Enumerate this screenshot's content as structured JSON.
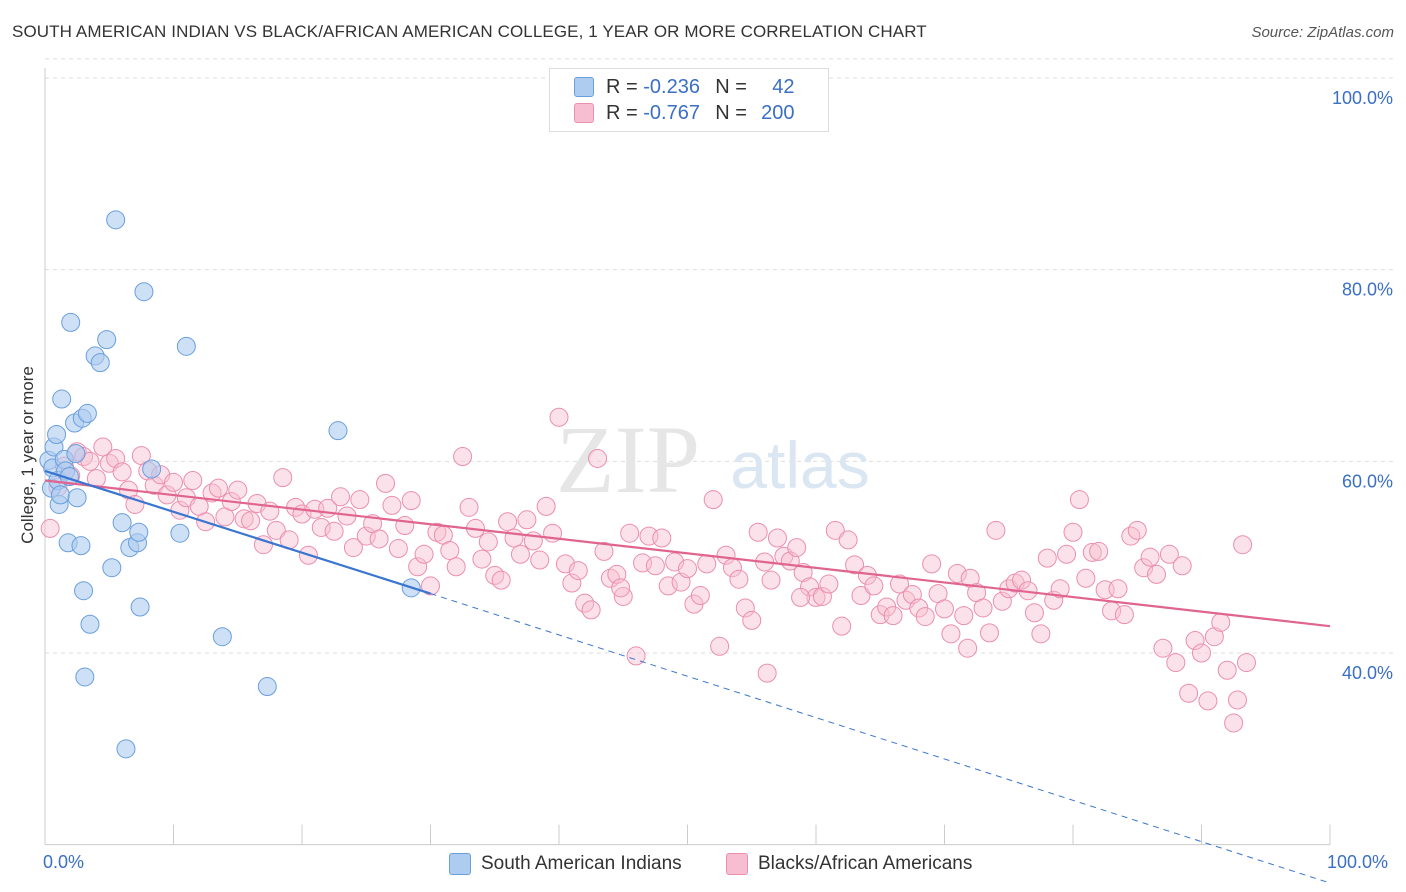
{
  "title": "SOUTH AMERICAN INDIAN VS BLACK/AFRICAN AMERICAN COLLEGE, 1 YEAR OR MORE CORRELATION CHART",
  "source": "Source: ZipAtlas.com",
  "watermark": {
    "zip": "ZIP",
    "atlas": "atlas"
  },
  "legend": {
    "r_label": "R =",
    "n_label": "N =",
    "rows": [
      {
        "r": "-0.236",
        "n": "42"
      },
      {
        "r": "-0.767",
        "n": "200"
      }
    ]
  },
  "x_axis": {
    "min_label": "0.0%",
    "max_label": "100.0%"
  },
  "bottom_legend": [
    "South American Indians",
    "Blacks/African Americans"
  ],
  "colors": {
    "blue_fill": "#aecbf0",
    "blue_stroke": "#6a9fdc",
    "blue_line": "#3a75d0",
    "pink_fill": "#f7bed1",
    "pink_stroke": "#ec8eae",
    "pink_line": "#e0648f",
    "axis_text": "#3a6fc4",
    "grid": "#dddddd"
  },
  "chart_data": {
    "type": "scatter",
    "title": "SOUTH AMERICAN INDIAN VS BLACK/AFRICAN AMERICAN COLLEGE, 1 YEAR OR MORE CORRELATION CHART",
    "xlabel": "",
    "ylabel": "College, 1 year or more",
    "xlim": [
      0,
      100
    ],
    "ylim": [
      20,
      102
    ],
    "y_ticks": [
      40,
      60,
      80,
      100
    ],
    "y_tick_labels": [
      "40.0%",
      "60.0%",
      "80.0%",
      "100.0%"
    ],
    "grid": "horizontal dashed",
    "legend_position": "top-center",
    "series": [
      {
        "name": "South American Indians",
        "r": -0.236,
        "n": 42,
        "trend": {
          "x0": 0,
          "y0": 59.0,
          "x1": 30,
          "y1": 46.2,
          "dashed_to_x": 100,
          "dashed_to_y": 16.0
        },
        "points": [
          [
            0.3,
            60.1
          ],
          [
            0.5,
            57.2
          ],
          [
            0.6,
            59.3
          ],
          [
            0.7,
            61.5
          ],
          [
            0.9,
            62.8
          ],
          [
            1.0,
            58.0
          ],
          [
            1.1,
            55.5
          ],
          [
            1.2,
            56.5
          ],
          [
            1.3,
            66.5
          ],
          [
            1.5,
            60.2
          ],
          [
            1.6,
            59.0
          ],
          [
            1.8,
            51.5
          ],
          [
            1.9,
            58.4
          ],
          [
            2.0,
            74.5
          ],
          [
            2.3,
            64.0
          ],
          [
            2.4,
            60.8
          ],
          [
            2.5,
            56.2
          ],
          [
            2.8,
            51.2
          ],
          [
            2.9,
            64.5
          ],
          [
            3.0,
            46.5
          ],
          [
            3.1,
            37.5
          ],
          [
            3.3,
            65.0
          ],
          [
            3.5,
            43.0
          ],
          [
            3.9,
            71.0
          ],
          [
            4.3,
            70.3
          ],
          [
            4.8,
            72.7
          ],
          [
            5.2,
            48.9
          ],
          [
            5.5,
            85.2
          ],
          [
            6.0,
            53.6
          ],
          [
            6.3,
            30.0
          ],
          [
            6.6,
            51.0
          ],
          [
            7.2,
            51.5
          ],
          [
            7.3,
            52.6
          ],
          [
            7.4,
            44.8
          ],
          [
            7.7,
            77.7
          ],
          [
            8.3,
            59.2
          ],
          [
            10.5,
            52.5
          ],
          [
            11.0,
            72.0
          ],
          [
            13.8,
            41.7
          ],
          [
            17.3,
            36.5
          ],
          [
            22.8,
            63.2
          ],
          [
            28.5,
            46.8
          ]
        ]
      },
      {
        "name": "Blacks/African Americans",
        "r": -0.767,
        "n": 200,
        "trend": {
          "x0": 0,
          "y0": 58.0,
          "x1": 100,
          "y1": 42.8
        },
        "points": [
          [
            0.4,
            53.0
          ],
          [
            1.0,
            57.3
          ],
          [
            1.5,
            59.5
          ],
          [
            2.0,
            58.5
          ],
          [
            2.5,
            61.0
          ],
          [
            3.0,
            60.5
          ],
          [
            3.5,
            60.0
          ],
          [
            4.0,
            58.2
          ],
          [
            4.5,
            61.5
          ],
          [
            5.0,
            59.8
          ],
          [
            5.5,
            60.3
          ],
          [
            6.0,
            58.9
          ],
          [
            6.5,
            57.0
          ],
          [
            7.0,
            55.5
          ],
          [
            7.5,
            60.6
          ],
          [
            8.0,
            59.0
          ],
          [
            8.5,
            57.5
          ],
          [
            9.0,
            58.6
          ],
          [
            9.5,
            56.5
          ],
          [
            10.0,
            57.8
          ],
          [
            10.5,
            54.9
          ],
          [
            11.0,
            56.2
          ],
          [
            11.5,
            58.0
          ],
          [
            12.0,
            55.3
          ],
          [
            12.5,
            53.7
          ],
          [
            13.0,
            56.7
          ],
          [
            13.5,
            57.2
          ],
          [
            14.0,
            54.2
          ],
          [
            14.5,
            55.8
          ],
          [
            15.0,
            57.0
          ],
          [
            15.5,
            54.0
          ],
          [
            16.0,
            53.8
          ],
          [
            16.5,
            55.6
          ],
          [
            17.0,
            51.3
          ],
          [
            17.5,
            54.8
          ],
          [
            18.0,
            52.8
          ],
          [
            18.5,
            58.3
          ],
          [
            19.0,
            51.8
          ],
          [
            19.5,
            55.2
          ],
          [
            20.0,
            54.5
          ],
          [
            20.5,
            50.2
          ],
          [
            21.0,
            55.0
          ],
          [
            21.5,
            53.1
          ],
          [
            22.0,
            55.1
          ],
          [
            22.5,
            52.7
          ],
          [
            23.0,
            56.3
          ],
          [
            23.5,
            54.3
          ],
          [
            24.0,
            51.0
          ],
          [
            24.5,
            56.0
          ],
          [
            25.0,
            52.2
          ],
          [
            25.5,
            53.5
          ],
          [
            26.0,
            51.9
          ],
          [
            26.5,
            57.7
          ],
          [
            27.0,
            55.4
          ],
          [
            27.5,
            50.9
          ],
          [
            28.0,
            53.3
          ],
          [
            28.5,
            55.9
          ],
          [
            29.0,
            49.0
          ],
          [
            29.5,
            50.3
          ],
          [
            30.0,
            47.0
          ],
          [
            30.5,
            52.6
          ],
          [
            31.0,
            52.3
          ],
          [
            31.5,
            50.7
          ],
          [
            32.0,
            49.0
          ],
          [
            32.5,
            60.5
          ],
          [
            33.0,
            55.2
          ],
          [
            33.5,
            53.0
          ],
          [
            34.0,
            49.8
          ],
          [
            34.5,
            51.6
          ],
          [
            35.0,
            48.1
          ],
          [
            35.5,
            47.6
          ],
          [
            36.0,
            53.7
          ],
          [
            36.5,
            52.0
          ],
          [
            37.0,
            50.3
          ],
          [
            37.5,
            53.9
          ],
          [
            38.0,
            51.7
          ],
          [
            38.5,
            49.7
          ],
          [
            39.0,
            55.3
          ],
          [
            39.5,
            52.5
          ],
          [
            40.0,
            64.6
          ],
          [
            40.5,
            49.3
          ],
          [
            41.0,
            47.3
          ],
          [
            41.5,
            48.6
          ],
          [
            42.0,
            45.2
          ],
          [
            42.5,
            44.5
          ],
          [
            43.0,
            60.3
          ],
          [
            43.5,
            50.6
          ],
          [
            44.0,
            47.8
          ],
          [
            44.5,
            48.2
          ],
          [
            45.0,
            45.9
          ],
          [
            45.5,
            52.5
          ],
          [
            46.0,
            39.7
          ],
          [
            46.5,
            49.4
          ],
          [
            47.0,
            52.2
          ],
          [
            47.5,
            49.1
          ],
          [
            48.0,
            52.0
          ],
          [
            48.5,
            47.0
          ],
          [
            49.0,
            49.5
          ],
          [
            49.5,
            47.4
          ],
          [
            50.0,
            48.8
          ],
          [
            50.5,
            45.1
          ],
          [
            51.0,
            46.0
          ],
          [
            51.5,
            49.3
          ],
          [
            52.0,
            56.0
          ],
          [
            52.5,
            40.7
          ],
          [
            53.0,
            50.2
          ],
          [
            53.5,
            48.9
          ],
          [
            54.0,
            47.7
          ],
          [
            54.5,
            44.7
          ],
          [
            55.0,
            43.4
          ],
          [
            55.5,
            52.6
          ],
          [
            56.0,
            49.5
          ],
          [
            56.5,
            47.6
          ],
          [
            57.0,
            52.0
          ],
          [
            57.5,
            50.1
          ],
          [
            58.0,
            49.6
          ],
          [
            58.5,
            51.0
          ],
          [
            59.0,
            48.4
          ],
          [
            59.5,
            46.9
          ],
          [
            60.0,
            45.8
          ],
          [
            60.5,
            45.9
          ],
          [
            61.0,
            47.2
          ],
          [
            61.5,
            52.8
          ],
          [
            62.0,
            42.8
          ],
          [
            62.5,
            51.8
          ],
          [
            63.0,
            49.2
          ],
          [
            63.5,
            46.0
          ],
          [
            64.0,
            48.1
          ],
          [
            64.5,
            47.0
          ],
          [
            65.0,
            44.0
          ],
          [
            65.5,
            44.8
          ],
          [
            66.0,
            43.9
          ],
          [
            66.5,
            47.2
          ],
          [
            67.0,
            45.5
          ],
          [
            67.5,
            46.1
          ],
          [
            68.0,
            44.7
          ],
          [
            68.5,
            43.8
          ],
          [
            69.0,
            49.3
          ],
          [
            69.5,
            46.2
          ],
          [
            70.0,
            44.6
          ],
          [
            70.5,
            42.0
          ],
          [
            71.0,
            48.3
          ],
          [
            71.5,
            43.9
          ],
          [
            72.0,
            47.8
          ],
          [
            72.5,
            46.3
          ],
          [
            73.0,
            44.7
          ],
          [
            73.5,
            42.1
          ],
          [
            74.0,
            52.8
          ],
          [
            74.5,
            45.4
          ],
          [
            75.0,
            46.7
          ],
          [
            75.5,
            47.3
          ],
          [
            76.0,
            47.6
          ],
          [
            76.5,
            46.5
          ],
          [
            77.0,
            44.2
          ],
          [
            77.5,
            42.0
          ],
          [
            78.0,
            49.9
          ],
          [
            78.5,
            45.5
          ],
          [
            79.0,
            46.7
          ],
          [
            79.5,
            50.3
          ],
          [
            80.0,
            52.6
          ],
          [
            80.5,
            56.0
          ],
          [
            81.0,
            47.8
          ],
          [
            81.5,
            50.5
          ],
          [
            82.0,
            50.6
          ],
          [
            82.5,
            46.6
          ],
          [
            83.0,
            44.4
          ],
          [
            83.5,
            46.7
          ],
          [
            84.0,
            44.0
          ],
          [
            84.5,
            52.2
          ],
          [
            85.0,
            52.8
          ],
          [
            85.5,
            48.9
          ],
          [
            86.0,
            50.0
          ],
          [
            86.5,
            48.2
          ],
          [
            87.0,
            40.5
          ],
          [
            87.5,
            50.3
          ],
          [
            88.0,
            39.0
          ],
          [
            88.5,
            49.1
          ],
          [
            89.0,
            35.8
          ],
          [
            89.5,
            41.3
          ],
          [
            90.0,
            40.0
          ],
          [
            90.5,
            35.0
          ],
          [
            91.0,
            41.7
          ],
          [
            91.5,
            43.2
          ],
          [
            92.0,
            38.2
          ],
          [
            92.5,
            32.7
          ],
          [
            92.8,
            35.1
          ],
          [
            93.5,
            39.0
          ],
          [
            93.2,
            51.3
          ],
          [
            44.8,
            46.8
          ],
          [
            58.8,
            45.8
          ],
          [
            71.8,
            40.5
          ],
          [
            56.2,
            37.9
          ]
        ]
      }
    ]
  }
}
